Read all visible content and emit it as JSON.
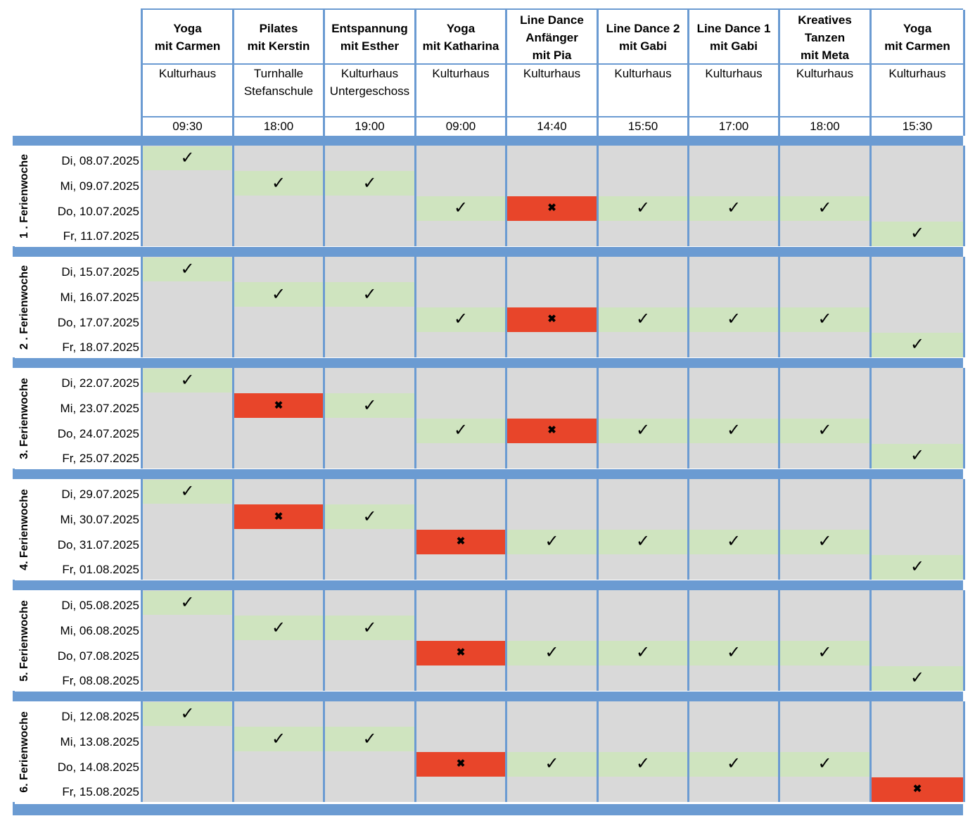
{
  "columns": [
    {
      "title": "Yoga\nmit Carmen",
      "location": "Kulturhaus",
      "time": "09:30"
    },
    {
      "title": "Pilates\nmit Kerstin",
      "location": "Turnhalle\nStefanschule",
      "time": "18:00"
    },
    {
      "title": "Entspannung\nmit Esther",
      "location": "Kulturhaus\nUntergeschoss",
      "time": "19:00"
    },
    {
      "title": "Yoga\nmit Katharina",
      "location": "Kulturhaus",
      "time": "09:00"
    },
    {
      "title": "Line Dance\nAnfänger\nmit Pia",
      "location": "Kulturhaus",
      "time": "14:40"
    },
    {
      "title": "Line Dance 2\nmit Gabi",
      "location": "Kulturhaus",
      "time": "15:50"
    },
    {
      "title": "Line Dance 1\nmit Gabi",
      "location": "Kulturhaus",
      "time": "17:00"
    },
    {
      "title": "Kreatives\nTanzen\nmit Meta",
      "location": "Kulturhaus",
      "time": "18:00"
    },
    {
      "title": "Yoga\nmit Carmen",
      "location": "Kulturhaus",
      "time": "15:30"
    }
  ],
  "symbols": {
    "yes": "✓",
    "no": "✖"
  },
  "colors": {
    "frame": "#6b9bd2",
    "cell": "#d9d9d9",
    "yes": "#cfe4bf",
    "no": "#e8452a"
  },
  "weeks": [
    {
      "label": "1 . Ferienwoche",
      "days": [
        {
          "date": "Di, 08.07.2025",
          "marks": {
            "0": "yes"
          }
        },
        {
          "date": "Mi, 09.07.2025",
          "marks": {
            "1": "yes",
            "2": "yes"
          }
        },
        {
          "date": "Do, 10.07.2025",
          "marks": {
            "3": "yes",
            "4": "no",
            "5": "yes",
            "6": "yes",
            "7": "yes"
          }
        },
        {
          "date": "Fr, 11.07.2025",
          "marks": {
            "8": "yes"
          }
        }
      ]
    },
    {
      "label": "2 . Ferienwoche",
      "days": [
        {
          "date": "Di, 15.07.2025",
          "marks": {
            "0": "yes"
          }
        },
        {
          "date": "Mi, 16.07.2025",
          "marks": {
            "1": "yes",
            "2": "yes"
          }
        },
        {
          "date": "Do, 17.07.2025",
          "marks": {
            "3": "yes",
            "4": "no",
            "5": "yes",
            "6": "yes",
            "7": "yes"
          }
        },
        {
          "date": "Fr, 18.07.2025",
          "marks": {
            "8": "yes"
          }
        }
      ]
    },
    {
      "label": "3. Ferienwoche",
      "days": [
        {
          "date": "Di, 22.07.2025",
          "marks": {
            "0": "yes"
          }
        },
        {
          "date": "Mi, 23.07.2025",
          "marks": {
            "1": "no",
            "2": "yes"
          }
        },
        {
          "date": "Do, 24.07.2025",
          "marks": {
            "3": "yes",
            "4": "no",
            "5": "yes",
            "6": "yes",
            "7": "yes"
          }
        },
        {
          "date": "Fr, 25.07.2025",
          "marks": {
            "8": "yes"
          }
        }
      ]
    },
    {
      "label": "4. Ferienwoche",
      "days": [
        {
          "date": "Di, 29.07.2025",
          "marks": {
            "0": "yes"
          }
        },
        {
          "date": "Mi, 30.07.2025",
          "marks": {
            "1": "no",
            "2": "yes"
          }
        },
        {
          "date": "Do, 31.07.2025",
          "marks": {
            "3": "no",
            "4": "yes",
            "5": "yes",
            "6": "yes",
            "7": "yes"
          }
        },
        {
          "date": "Fr, 01.08.2025",
          "marks": {
            "8": "yes"
          }
        }
      ]
    },
    {
      "label": "5. Ferienwoche",
      "days": [
        {
          "date": "Di, 05.08.2025",
          "marks": {
            "0": "yes"
          }
        },
        {
          "date": "Mi, 06.08.2025",
          "marks": {
            "1": "yes",
            "2": "yes"
          }
        },
        {
          "date": "Do, 07.08.2025",
          "marks": {
            "3": "no",
            "4": "yes",
            "5": "yes",
            "6": "yes",
            "7": "yes"
          }
        },
        {
          "date": "Fr, 08.08.2025",
          "marks": {
            "8": "yes"
          }
        }
      ]
    },
    {
      "label": "6. Ferienwoche",
      "days": [
        {
          "date": "Di, 12.08.2025",
          "marks": {
            "0": "yes"
          }
        },
        {
          "date": "Mi, 13.08.2025",
          "marks": {
            "1": "yes",
            "2": "yes"
          }
        },
        {
          "date": "Do, 14.08.2025",
          "marks": {
            "3": "no",
            "4": "yes",
            "5": "yes",
            "6": "yes",
            "7": "yes"
          }
        },
        {
          "date": "Fr, 15.08.2025",
          "marks": {
            "8": "no"
          }
        }
      ]
    }
  ]
}
